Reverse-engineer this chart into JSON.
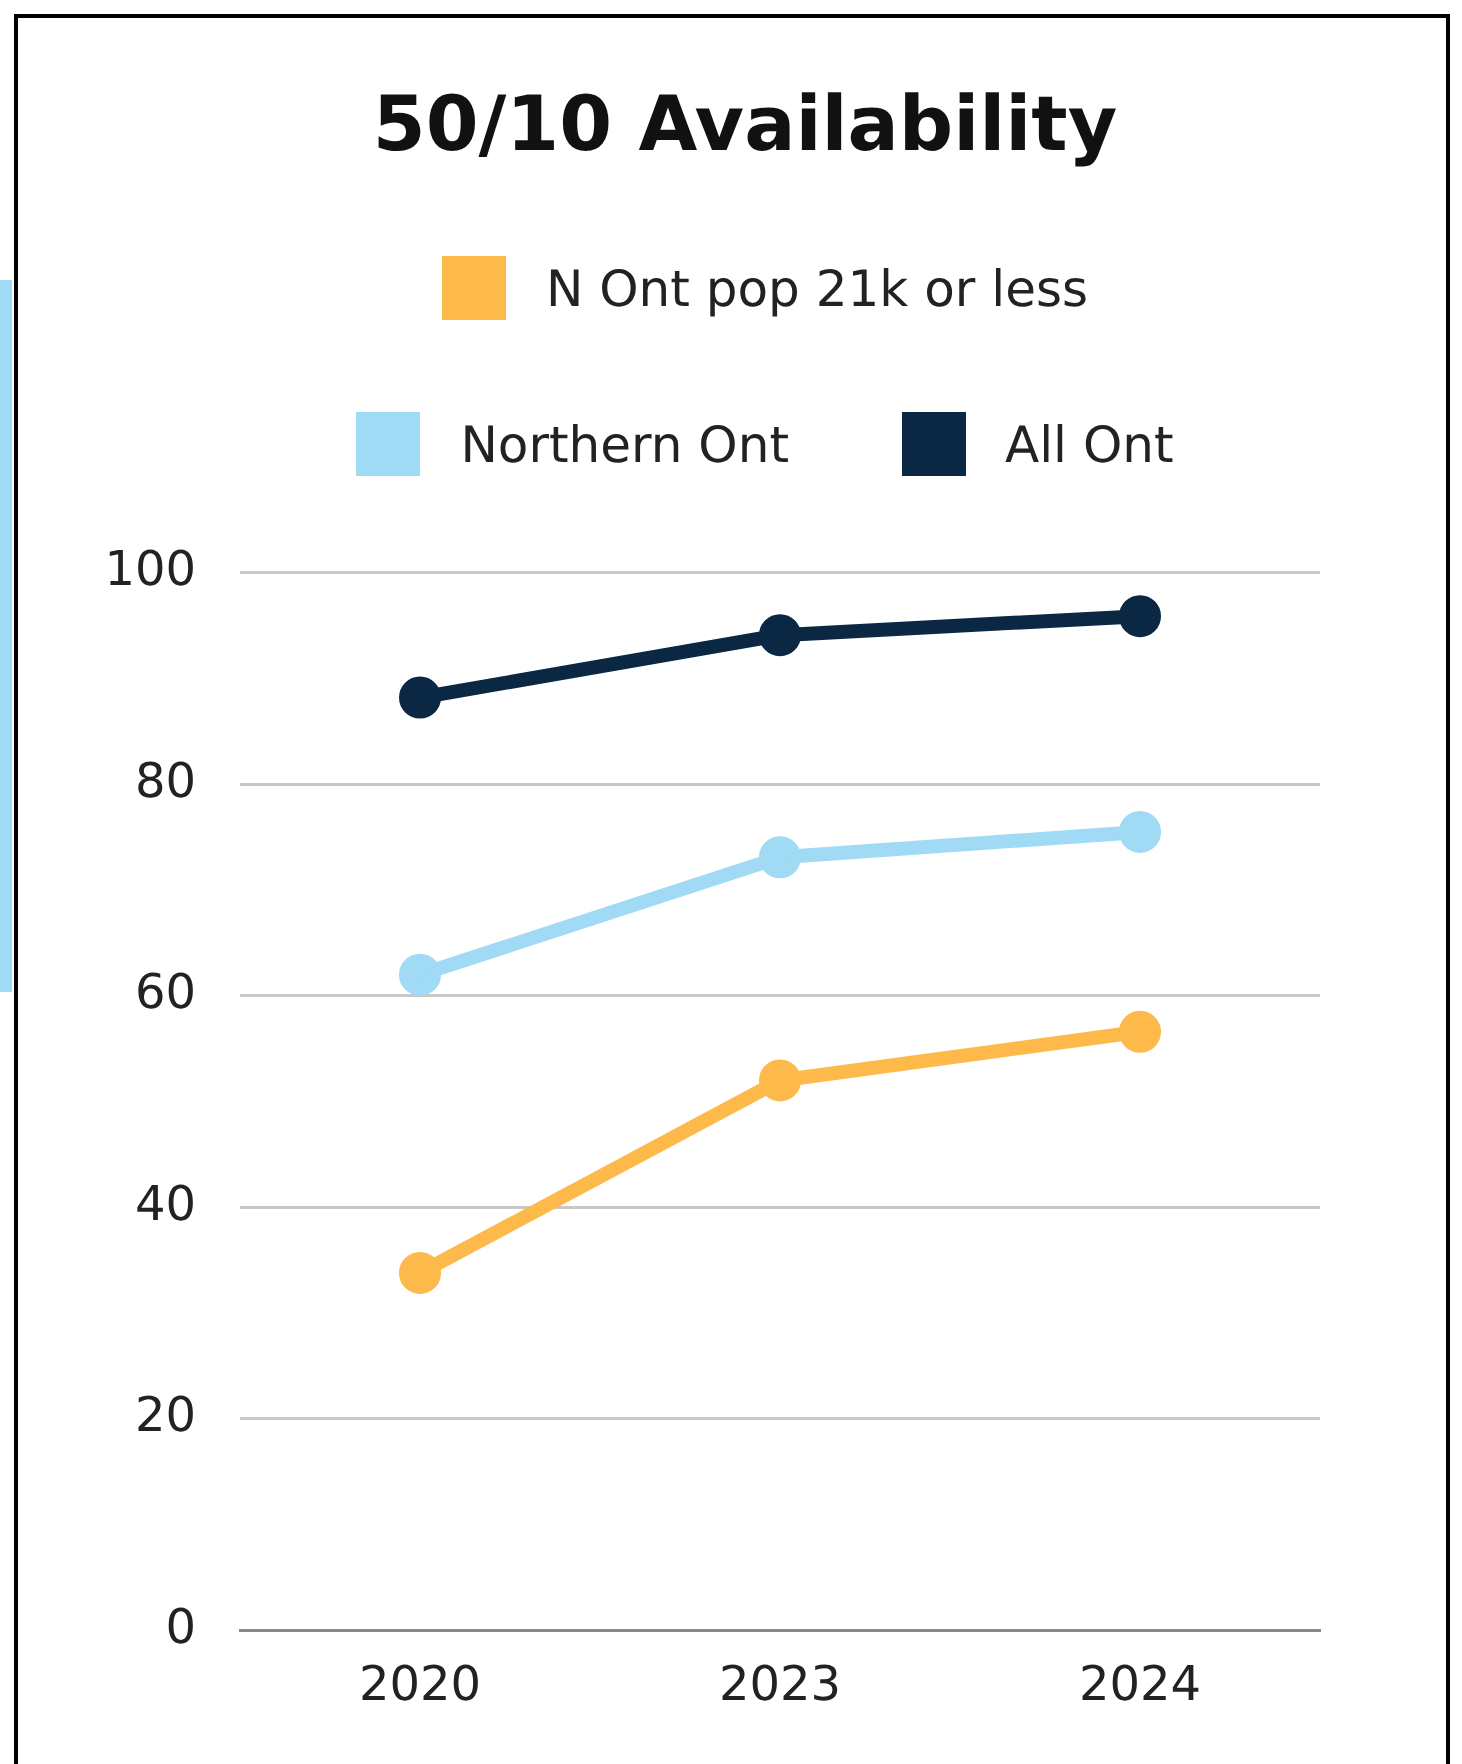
{
  "chart_data": {
    "type": "line",
    "title": "50/10 Availability",
    "categories": [
      "2020",
      "2023",
      "2024"
    ],
    "series": [
      {
        "name": "N Ont pop 21k or less",
        "color": "#fdb94a",
        "values": [
          33.8,
          52.0,
          56.6
        ]
      },
      {
        "name": "Northern Ont",
        "color": "#a0daf4",
        "values": [
          62.0,
          73.1,
          75.5
        ]
      },
      {
        "name": "All Ont",
        "color": "#0a2744",
        "values": [
          88.2,
          94.1,
          95.9
        ]
      }
    ],
    "ylim": [
      0,
      100
    ],
    "yticks": [
      0,
      20,
      40,
      60,
      80,
      100
    ],
    "grid": "y",
    "legend": "top",
    "marker": "circle",
    "line_style": "solid"
  }
}
